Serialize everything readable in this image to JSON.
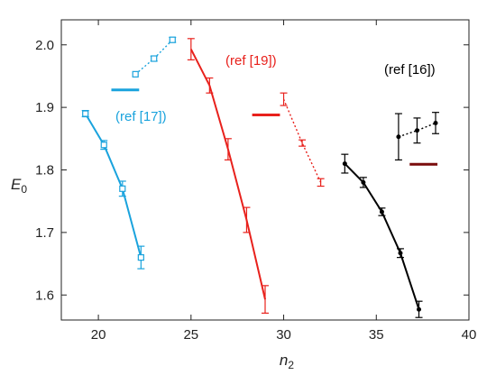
{
  "chart_data": {
    "type": "scatter",
    "title": "",
    "xlabel": "n",
    "xlabel_sub": "2",
    "ylabel": "E",
    "ylabel_sub": "0",
    "xlim": [
      18,
      40
    ],
    "ylim": [
      1.56,
      2.04
    ],
    "xticks": [
      20,
      25,
      30,
      35,
      40
    ],
    "yticks": [
      1.6,
      1.7,
      1.8,
      1.9,
      2.0
    ],
    "xtick_labels": [
      "20",
      "25",
      "30",
      "35",
      "40"
    ],
    "ytick_labels": [
      "1.6",
      "1.7",
      "1.8",
      "1.9",
      "2.0"
    ],
    "grid": false,
    "groups": [
      {
        "label": "(ref [17])",
        "color": "#1aa3dd",
        "marker": "square",
        "solid": [
          {
            "x": 19.3,
            "y": 1.89,
            "err": 0.005
          },
          {
            "x": 20.3,
            "y": 1.84,
            "err": 0.007
          },
          {
            "x": 21.3,
            "y": 1.77,
            "err": 0.012
          },
          {
            "x": 22.3,
            "y": 1.66,
            "err": 0.018
          }
        ],
        "dotted": [
          {
            "x": 22.0,
            "y": 1.953,
            "err": 0.0
          },
          {
            "x": 23.0,
            "y": 1.978,
            "err": 0.004
          },
          {
            "x": 24.0,
            "y": 2.008,
            "err": 0.004
          }
        ],
        "refline": {
          "x1": 20.7,
          "x2": 22.2,
          "y": 1.928
        }
      },
      {
        "label": "(ref [19])",
        "color": "#e8211c",
        "marker": "none",
        "solid": [
          {
            "x": 25.0,
            "y": 1.993,
            "err": 0.017
          },
          {
            "x": 26.0,
            "y": 1.935,
            "err": 0.012
          },
          {
            "x": 27.0,
            "y": 1.833,
            "err": 0.017
          },
          {
            "x": 28.0,
            "y": 1.72,
            "err": 0.02
          },
          {
            "x": 29.0,
            "y": 1.593,
            "err": 0.022
          }
        ],
        "dotted": [
          {
            "x": 30.0,
            "y": 1.913,
            "err": 0.01
          },
          {
            "x": 31.0,
            "y": 1.843,
            "err": 0.005
          },
          {
            "x": 32.0,
            "y": 1.78,
            "err": 0.006
          }
        ],
        "refline": {
          "x1": 28.3,
          "x2": 29.8,
          "y": 1.888
        }
      },
      {
        "label": "(ref [16])",
        "color": "#000000",
        "marker": "dot",
        "solid": [
          {
            "x": 33.3,
            "y": 1.81,
            "err": 0.015
          },
          {
            "x": 34.3,
            "y": 1.78,
            "err": 0.008
          },
          {
            "x": 35.3,
            "y": 1.733,
            "err": 0.006
          },
          {
            "x": 36.3,
            "y": 1.667,
            "err": 0.007
          },
          {
            "x": 37.3,
            "y": 1.577,
            "err": 0.013
          }
        ],
        "dotted": [
          {
            "x": 36.2,
            "y": 1.853,
            "err": 0.037
          },
          {
            "x": 37.2,
            "y": 1.863,
            "err": 0.02
          },
          {
            "x": 38.2,
            "y": 1.875,
            "err": 0.017
          }
        ],
        "refline": {
          "x1": 36.8,
          "x2": 38.3,
          "y": 1.809
        }
      }
    ]
  },
  "colors": {
    "ref_line_16": "#7a0c0c",
    "axis": "#222222"
  }
}
